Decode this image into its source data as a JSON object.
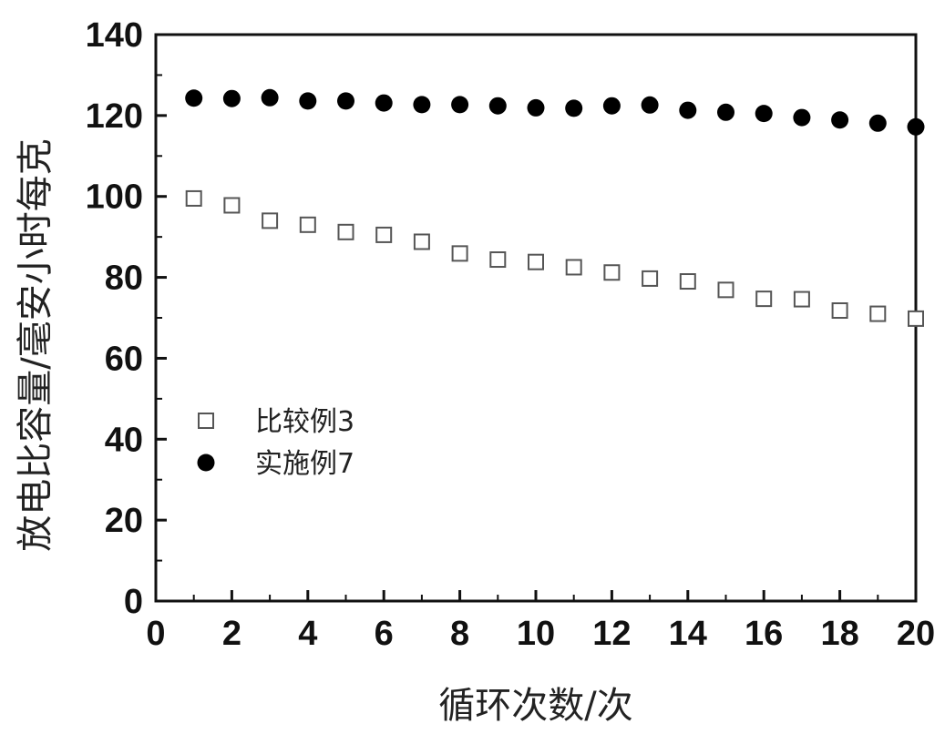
{
  "chart_data": {
    "type": "scatter",
    "xlabel": "循环次数/次",
    "ylabel": "放电比容量/毫安小时每克",
    "xlim": [
      0,
      20
    ],
    "ylim": [
      0,
      140
    ],
    "xticks": [
      0,
      2,
      4,
      6,
      8,
      10,
      12,
      14,
      16,
      18,
      20
    ],
    "yticks": [
      0,
      20,
      40,
      60,
      80,
      100,
      120,
      140
    ],
    "grid": false,
    "legend_position": "center-left",
    "series": [
      {
        "name": "比较例3",
        "marker": "open-square",
        "color": "#555555",
        "x": [
          1,
          2,
          3,
          4,
          5,
          6,
          7,
          8,
          9,
          10,
          11,
          12,
          13,
          14,
          15,
          16,
          17,
          18,
          19,
          20
        ],
        "y": [
          99.5,
          97.8,
          94.0,
          93.0,
          91.2,
          90.5,
          88.8,
          85.9,
          84.4,
          83.8,
          82.5,
          81.2,
          79.7,
          79.0,
          76.9,
          74.7,
          74.6,
          71.8,
          71.0,
          69.8
        ]
      },
      {
        "name": "实施例7",
        "marker": "filled-circle",
        "color": "#000000",
        "x": [
          1,
          2,
          3,
          4,
          5,
          6,
          7,
          8,
          9,
          10,
          11,
          12,
          13,
          14,
          15,
          16,
          17,
          18,
          19,
          20
        ],
        "y": [
          124.3,
          124.2,
          124.4,
          123.6,
          123.6,
          123.1,
          122.7,
          122.7,
          122.4,
          121.9,
          121.8,
          122.4,
          122.6,
          121.3,
          120.8,
          120.5,
          119.5,
          118.9,
          118.1,
          117.2
        ]
      }
    ]
  }
}
